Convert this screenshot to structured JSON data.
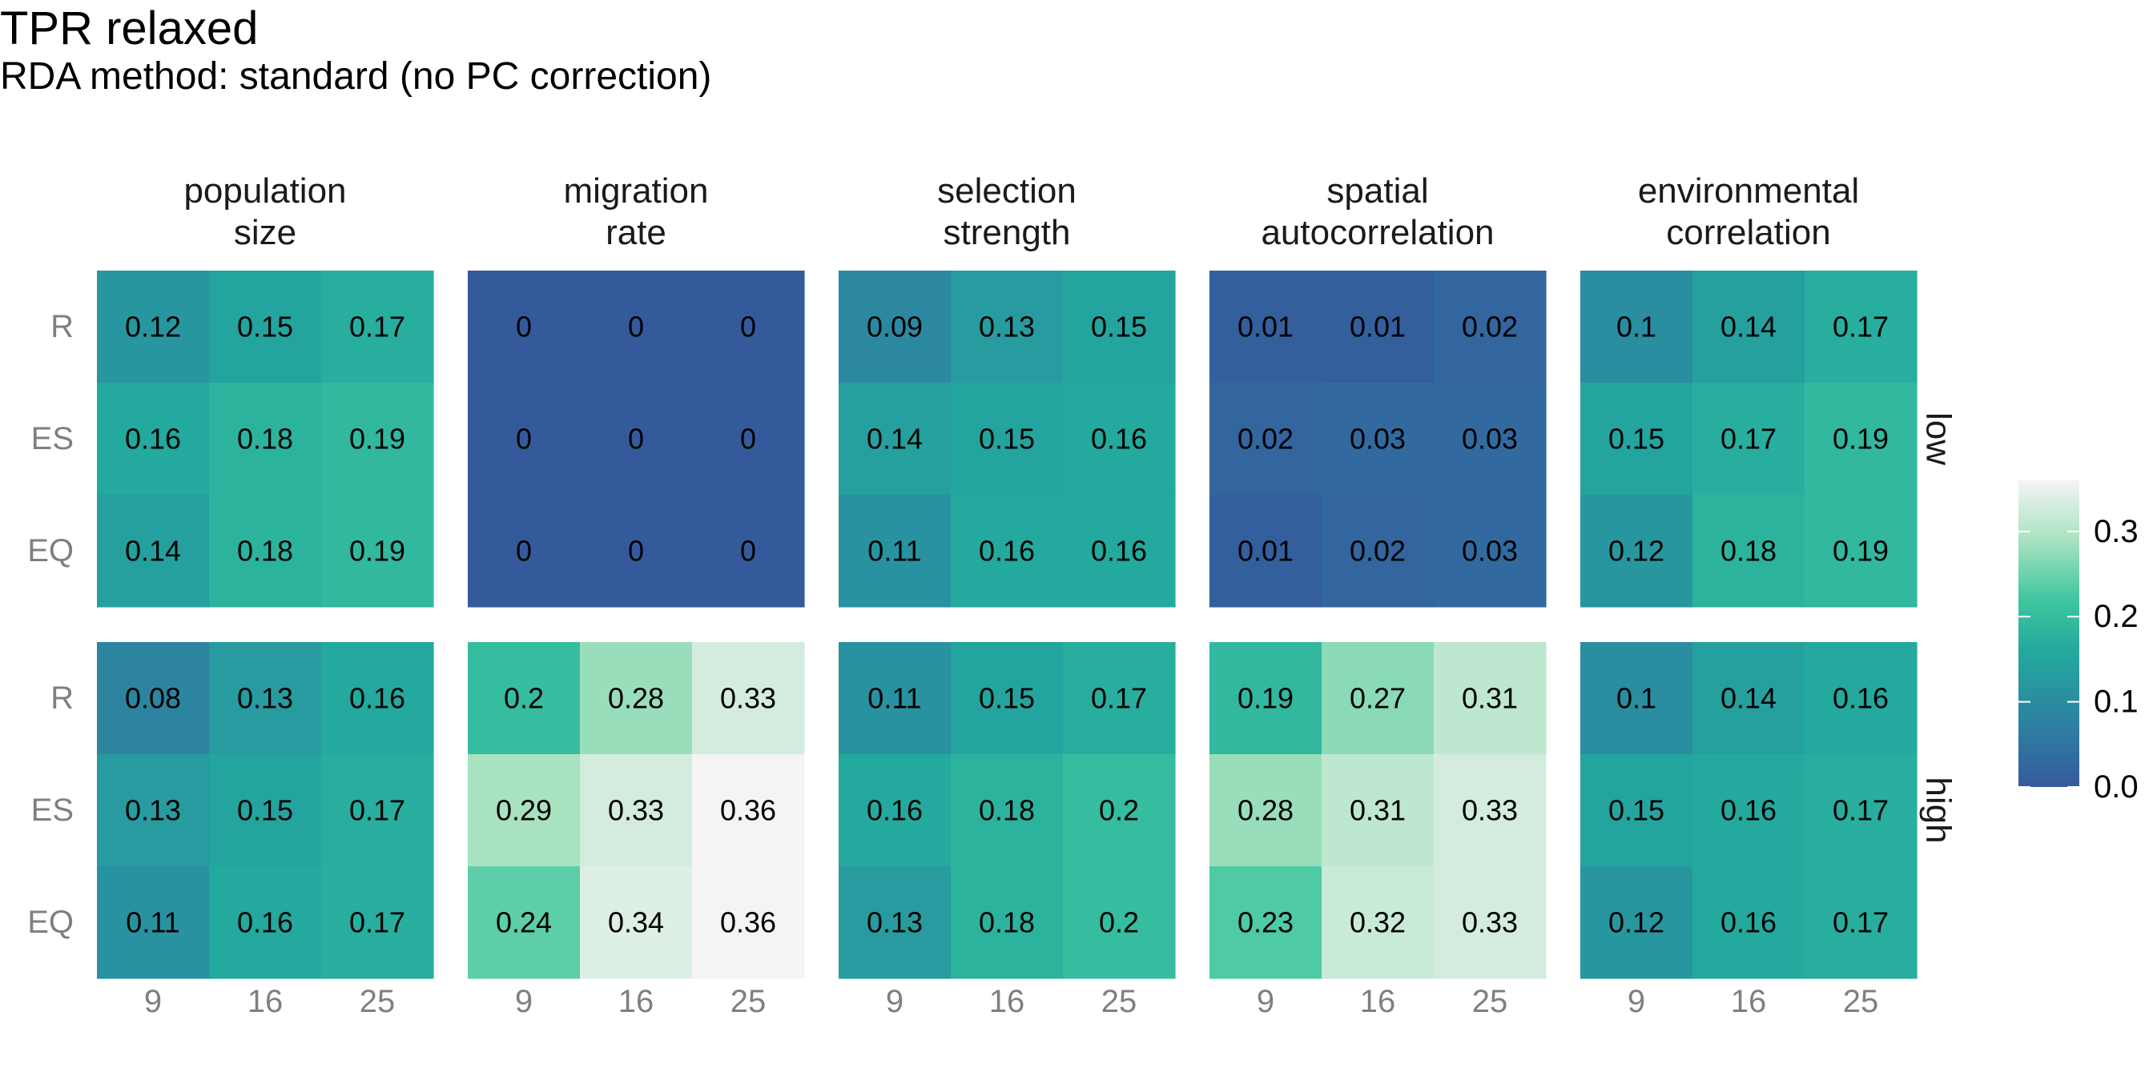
{
  "chart_data": {
    "type": "heatmap",
    "title": "TPR relaxed",
    "subtitle": "RDA method: standard (no PC correction)",
    "x_ticks": [
      "9",
      "16",
      "25"
    ],
    "y_ticks": [
      "R",
      "ES",
      "EQ"
    ],
    "facet_columns": [
      [
        "population",
        "size"
      ],
      [
        "migration",
        "rate"
      ],
      [
        "selection",
        "strength"
      ],
      [
        "spatial",
        "autocorrelation"
      ],
      [
        "environmental",
        "correlation"
      ]
    ],
    "facet_rows": [
      "low",
      "high"
    ],
    "panels": [
      [
        [
          [
            0.12,
            0.15,
            0.17
          ],
          [
            0.16,
            0.18,
            0.19
          ],
          [
            0.14,
            0.18,
            0.19
          ]
        ],
        [
          [
            0,
            0,
            0
          ],
          [
            0,
            0,
            0
          ],
          [
            0,
            0,
            0
          ]
        ],
        [
          [
            0.09,
            0.13,
            0.15
          ],
          [
            0.14,
            0.15,
            0.16
          ],
          [
            0.11,
            0.16,
            0.16
          ]
        ],
        [
          [
            0.01,
            0.01,
            0.02
          ],
          [
            0.02,
            0.03,
            0.03
          ],
          [
            0.01,
            0.02,
            0.03
          ]
        ],
        [
          [
            0.1,
            0.14,
            0.17
          ],
          [
            0.15,
            0.17,
            0.19
          ],
          [
            0.12,
            0.18,
            0.19
          ]
        ]
      ],
      [
        [
          [
            0.08,
            0.13,
            0.16
          ],
          [
            0.13,
            0.15,
            0.17
          ],
          [
            0.11,
            0.16,
            0.17
          ]
        ],
        [
          [
            0.2,
            0.28,
            0.33
          ],
          [
            0.29,
            0.33,
            0.36
          ],
          [
            0.24,
            0.34,
            0.36
          ]
        ],
        [
          [
            0.11,
            0.15,
            0.17
          ],
          [
            0.16,
            0.18,
            0.2
          ],
          [
            0.13,
            0.18,
            0.2
          ]
        ],
        [
          [
            0.19,
            0.27,
            0.31
          ],
          [
            0.28,
            0.31,
            0.33
          ],
          [
            0.23,
            0.32,
            0.33
          ]
        ],
        [
          [
            0.1,
            0.14,
            0.16
          ],
          [
            0.15,
            0.16,
            0.17
          ],
          [
            0.12,
            0.16,
            0.17
          ]
        ]
      ]
    ],
    "legend": {
      "placement": "right",
      "ticks": [
        "0.0",
        "0.1",
        "0.2",
        "0.3"
      ],
      "range": [
        0,
        0.36
      ]
    },
    "colors": {
      "low": "#355A9C",
      "mid1": "#2E7FA2",
      "mid2": "#23A99D",
      "mid3": "#3FC6A0",
      "mid4": "#A8E2C0",
      "high": "#F4F4F4",
      "cell_text": "#000000",
      "axis_text": "#7F7F7F",
      "strip_text": "#1A1A1A"
    }
  }
}
